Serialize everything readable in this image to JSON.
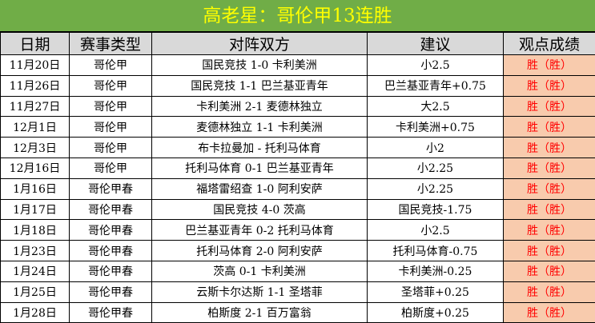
{
  "title": "高老星：哥伦甲13连胜",
  "headers": [
    "日期",
    "赛事类型",
    "对阵双方",
    "建议",
    "观点成绩"
  ],
  "colors": {
    "title_bg": "#70ad47",
    "title_text": "#ffff00",
    "header_bg": "#d9d9d9",
    "result_bg": "#f8cbad",
    "result_text": "#ff0000"
  },
  "rows": [
    [
      "11月20日",
      "哥伦甲",
      "国民竞技 1-0 卡利美洲",
      "小2.5",
      "胜（胜）"
    ],
    [
      "11月26日",
      "哥伦甲",
      "国民竞技 1-1 巴兰基亚青年",
      "巴兰基亚青年+0.75",
      "胜（胜）"
    ],
    [
      "11月27日",
      "哥伦甲",
      "卡利美洲 2-1 麦德林独立",
      "大2.5",
      "胜（胜）"
    ],
    [
      "12月1日",
      "哥伦甲",
      "麦德林独立 1-1 卡利美洲",
      "卡利美洲+0.75",
      "胜（胜）"
    ],
    [
      "12月3日",
      "哥伦甲",
      "布卡拉曼加 - 托利马体育",
      "小2",
      "胜（胜）"
    ],
    [
      "12月16日",
      "哥伦甲",
      "托利马体育 0-1 巴兰基亚青年",
      "小2.25",
      "胜（胜）"
    ],
    [
      "1月16日",
      "哥伦甲春",
      "福塔雷绍查 1-0 阿利安萨",
      "小2.25",
      "胜（胜）"
    ],
    [
      "1月17日",
      "哥伦甲春",
      "国民竞技 4-0 茨高",
      "国民竞技-1.75",
      "胜（胜）"
    ],
    [
      "1月18日",
      "哥伦甲春",
      "巴兰基亚青年 0-2 托利马体育",
      "小2.5",
      "胜（胜）"
    ],
    [
      "1月23日",
      "哥伦甲春",
      "托利马体育 2-0 阿利安萨",
      "托利马体育-0.75",
      "胜（胜）"
    ],
    [
      "1月24日",
      "哥伦甲春",
      "茨高 0-1 卡利美洲",
      "卡利美洲-0.25",
      "胜（胜）"
    ],
    [
      "1月25日",
      "哥伦甲春",
      "云斯卡尔达斯 1-1 圣塔菲",
      "圣塔菲+0.25",
      "胜（胜）"
    ],
    [
      "1月28日",
      "哥伦甲春",
      "柏斯度 2-1 百万富翁",
      "柏斯度+0.25",
      "胜（胜）"
    ]
  ]
}
